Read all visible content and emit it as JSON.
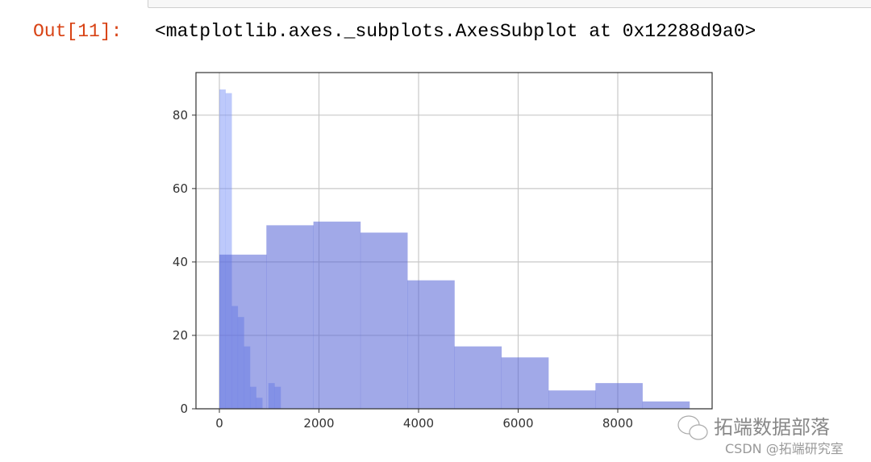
{
  "cell": {
    "prompt": "Out[11]:",
    "output": "<matplotlib.axes._subplots.AxesSubplot at 0x12288d9a0>"
  },
  "chart_data": {
    "type": "bar",
    "title": "",
    "xlabel": "",
    "ylabel": "",
    "xlim": [
      -470,
      9895
    ],
    "ylim": [
      0,
      91.6
    ],
    "grid": true,
    "xticks": [
      0,
      2000,
      4000,
      6000,
      8000
    ],
    "yticks": [
      0,
      20,
      40,
      60,
      80
    ],
    "series": [
      {
        "bin_start": 0,
        "bin_width": 123,
        "values": [
          87,
          86,
          28,
          25,
          17,
          6,
          3,
          0,
          7,
          6
        ],
        "color": "#7b93f7"
      },
      {
        "bin_start": 0,
        "bin_width": 944,
        "values": [
          42,
          50,
          51,
          48,
          35,
          17,
          14,
          5,
          7,
          2
        ],
        "color": "#5462d5"
      }
    ]
  },
  "watermark": {
    "line1": "拓端数据部落",
    "line2": "CSDN @拓端研究室"
  }
}
